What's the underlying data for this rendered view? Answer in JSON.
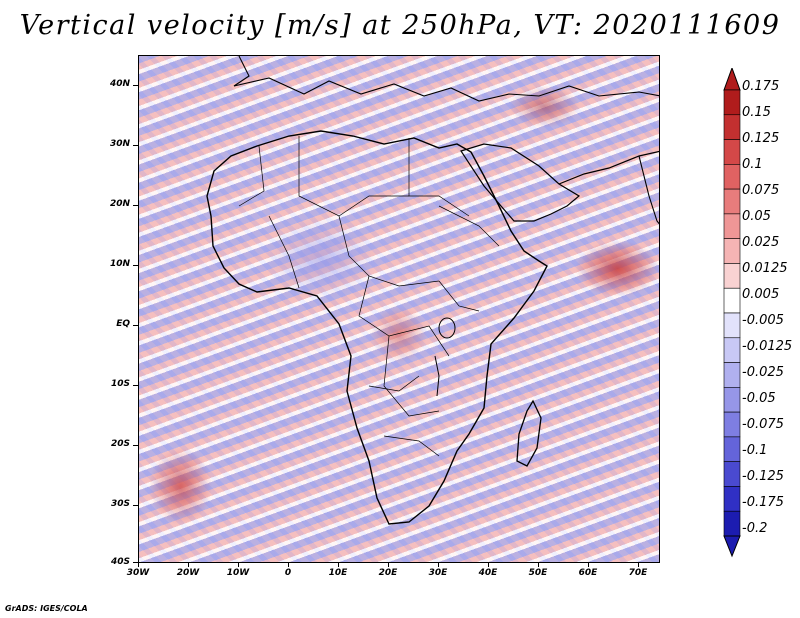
{
  "title": "Vertical velocity [m/s] at 250hPa, VT: 2020111609",
  "map": {
    "region": "Africa",
    "lat_labels": [
      "40N",
      "30N",
      "20N",
      "10N",
      "EQ",
      "10S",
      "20S",
      "30S",
      "40S"
    ],
    "lon_labels": [
      "30W",
      "20W",
      "10W",
      "0",
      "10E",
      "20E",
      "30E",
      "40E",
      "50E",
      "60E",
      "70E"
    ]
  },
  "colorbar": {
    "levels": [
      "0.175",
      "0.15",
      "0.125",
      "0.1",
      "0.075",
      "0.05",
      "0.025",
      "0.0125",
      "0.005",
      "-0.005",
      "-0.0125",
      "-0.025",
      "-0.05",
      "-0.075",
      "-0.1",
      "-0.125",
      "-0.175",
      "-0.2"
    ],
    "colors": [
      "#b01c1c",
      "#c33030",
      "#d44848",
      "#e06262",
      "#e87c7c",
      "#ef9696",
      "#f5b4b4",
      "#f9d2d2",
      "#ffffff",
      "#e2e2fb",
      "#c8c8f5",
      "#b0b0ef",
      "#9696e8",
      "#7e7ee2",
      "#6464da",
      "#4a4ad0",
      "#3030c4",
      "#1c1cb0"
    ],
    "top_color": "#b01c1c",
    "bottom_color": "#1c1cb0"
  },
  "footer": "GrADS: IGES/COLA"
}
